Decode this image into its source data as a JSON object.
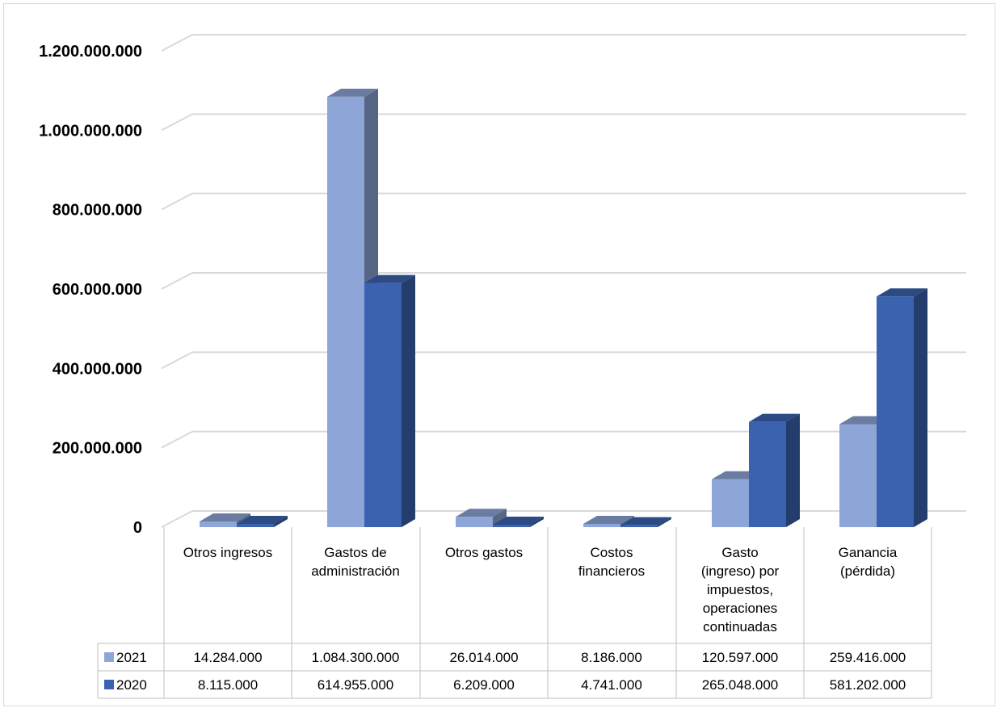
{
  "chart_data": {
    "type": "bar",
    "style": "3d-clustered-column-with-data-table",
    "title": "",
    "xlabel": "",
    "ylabel": "",
    "ylim": [
      0,
      1200000000
    ],
    "yticks": [
      0,
      200000000,
      400000000,
      600000000,
      800000000,
      1000000000,
      1200000000
    ],
    "ytick_labels": [
      "0",
      "200.000.000",
      "400.000.000",
      "600.000.000",
      "800.000.000",
      "1.000.000.000",
      "1.200.000.000"
    ],
    "grid": true,
    "legend": "data-table-left",
    "categories": [
      [
        "Otros ingresos"
      ],
      [
        "Gastos de",
        "administración"
      ],
      [
        "Otros gastos"
      ],
      [
        "Costos",
        "financieros"
      ],
      [
        "Gasto",
        "(ingreso) por",
        "impuestos,",
        "operaciones",
        "continuadas"
      ],
      [
        "Ganancia",
        "(pérdida)"
      ]
    ],
    "series": [
      {
        "name": "2021",
        "color": "#8EA5D8",
        "values": [
          14284000,
          1084300000,
          26014000,
          8186000,
          120597000,
          259416000
        ],
        "labels": [
          "14.284.000",
          "1.084.300.000",
          "26.014.000",
          "8.186.000",
          "120.597.000",
          "259.416.000"
        ]
      },
      {
        "name": "2020",
        "color": "#3A62AE",
        "values": [
          8115000,
          614955000,
          6209000,
          4741000,
          265048000,
          581202000
        ],
        "labels": [
          "8.115.000",
          "614.955.000",
          "6.209.000",
          "4.741.000",
          "265.048.000",
          "581.202.000"
        ]
      }
    ]
  }
}
